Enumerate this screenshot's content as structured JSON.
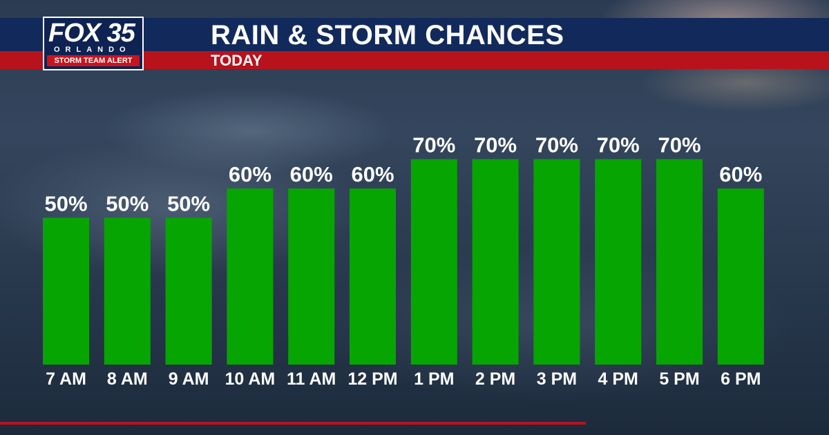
{
  "branding": {
    "logo_main": "FOX 35",
    "logo_city": "ORLANDO",
    "logo_alert": "STORM TEAM ALERT"
  },
  "header": {
    "title": "RAIN & STORM CHANCES",
    "subtitle": "TODAY"
  },
  "colors": {
    "bar": "#07a502",
    "header_blue": "#122a5b",
    "header_red": "#b8121c"
  },
  "chart_data": {
    "type": "bar",
    "title": "RAIN & STORM CHANCES",
    "subtitle": "TODAY",
    "categories": [
      "7 AM",
      "8 AM",
      "9 AM",
      "10 AM",
      "11 AM",
      "12 PM",
      "1 PM",
      "2 PM",
      "3 PM",
      "4 PM",
      "5 PM",
      "6 PM"
    ],
    "values": [
      50,
      50,
      50,
      60,
      60,
      60,
      70,
      70,
      70,
      70,
      70,
      60
    ],
    "data_labels": [
      "50%",
      "50%",
      "50%",
      "60%",
      "60%",
      "60%",
      "70%",
      "70%",
      "70%",
      "70%",
      "70%",
      "60%"
    ],
    "ylim": [
      0,
      100
    ],
    "grid": false,
    "legend": "none"
  }
}
